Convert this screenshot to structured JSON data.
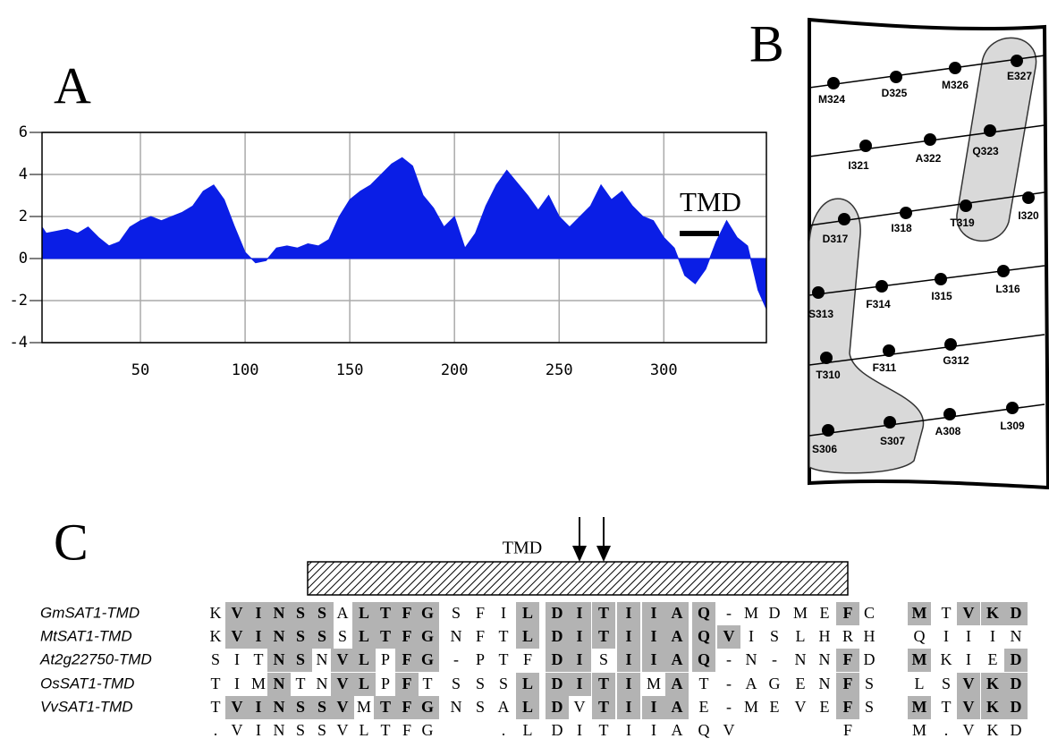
{
  "panels": {
    "a": "A",
    "b": "B",
    "c": "C"
  },
  "chart_data": {
    "type": "area",
    "color": "#0a1ee6",
    "x": [
      3,
      5,
      10,
      15,
      20,
      25,
      30,
      35,
      40,
      45,
      50,
      55,
      60,
      65,
      70,
      75,
      80,
      85,
      90,
      95,
      100,
      105,
      110,
      115,
      120,
      125,
      130,
      135,
      140,
      145,
      150,
      155,
      160,
      165,
      170,
      175,
      180,
      185,
      190,
      195,
      200,
      205,
      210,
      215,
      220,
      225,
      230,
      235,
      240,
      245,
      250,
      255,
      260,
      265,
      270,
      275,
      280,
      285,
      290,
      295,
      300,
      305,
      310,
      315,
      320,
      325,
      330,
      335,
      340,
      345,
      349
    ],
    "values": [
      1.5,
      1.2,
      1.3,
      1.4,
      1.2,
      1.5,
      1.0,
      0.6,
      0.8,
      1.5,
      1.8,
      2.0,
      1.8,
      2.0,
      2.2,
      2.5,
      3.2,
      3.5,
      2.8,
      1.5,
      0.3,
      -0.2,
      -0.1,
      0.5,
      0.6,
      0.5,
      0.7,
      0.6,
      0.9,
      2.0,
      2.8,
      3.2,
      3.5,
      4.0,
      4.5,
      4.8,
      4.4,
      3.0,
      2.4,
      1.5,
      2.0,
      0.5,
      1.2,
      2.5,
      3.5,
      4.2,
      3.6,
      3.0,
      2.3,
      3.0,
      2.0,
      1.5,
      2.0,
      2.5,
      3.5,
      2.8,
      3.2,
      2.5,
      2.0,
      1.8,
      1.0,
      0.5,
      -0.8,
      -1.2,
      -0.5,
      0.8,
      1.8,
      1.0,
      0.6,
      -1.5,
      -2.4
    ],
    "xlim": [
      3,
      349
    ],
    "ylim": [
      -4,
      6
    ],
    "xticks": [
      50,
      100,
      150,
      200,
      250,
      300
    ],
    "yticks": [
      6,
      4,
      2,
      0,
      -2,
      -4
    ],
    "grid": true,
    "annotation": "TMD"
  },
  "helical_net": {
    "nodes": [
      "M324",
      "D325",
      "M326",
      "E327",
      "I321",
      "A322",
      "Q323",
      "D317",
      "I318",
      "T319",
      "I320",
      "S313",
      "F314",
      "I315",
      "L316",
      "T310",
      "F311",
      "G312",
      "S306",
      "S307",
      "A308",
      "L309"
    ]
  },
  "alignment": {
    "domain_label": "TMD",
    "shade_color": "#b3b3b3",
    "names": [
      "GmSAT1-TMD",
      "MtSAT1-TMD",
      "At2g22750-TMD",
      "OsSAT1-TMD",
      "VvSAT1-TMD"
    ],
    "rows": [
      [
        "K",
        "V",
        "I",
        "N",
        "S",
        "S",
        "A",
        "L",
        "T",
        "F",
        "G",
        "S",
        "F",
        "I",
        "L",
        "D",
        "I",
        "T",
        "I",
        "I",
        "A",
        "Q",
        "-",
        "M",
        "D",
        "M",
        "E",
        "F",
        "C",
        "M",
        "T",
        "V",
        "K",
        "D"
      ],
      [
        "K",
        "V",
        "I",
        "N",
        "S",
        "S",
        "S",
        "L",
        "T",
        "F",
        "G",
        "N",
        "F",
        "T",
        "L",
        "D",
        "I",
        "T",
        "I",
        "I",
        "A",
        "Q",
        "V",
        "I",
        "S",
        "L",
        "H",
        "R",
        "H",
        "Q",
        "I",
        "I",
        "I",
        "N"
      ],
      [
        "S",
        "I",
        "T",
        "N",
        "S",
        "N",
        "V",
        "L",
        "P",
        "F",
        "G",
        "-",
        "P",
        "T",
        "F",
        "D",
        "I",
        "S",
        "I",
        "I",
        "A",
        "Q",
        "-",
        "N",
        "-",
        "N",
        "N",
        "F",
        "D",
        "M",
        "K",
        "I",
        "E",
        "D"
      ],
      [
        "T",
        "I",
        "M",
        "N",
        "T",
        "N",
        "V",
        "L",
        "P",
        "F",
        "T",
        "S",
        "S",
        "S",
        "L",
        "D",
        "I",
        "T",
        "I",
        "M",
        "A",
        "T",
        "-",
        "A",
        "G",
        "E",
        "N",
        "F",
        "S",
        "L",
        "S",
        "V",
        "K",
        "D"
      ],
      [
        "T",
        "V",
        "I",
        "N",
        "S",
        "S",
        "V",
        "M",
        "T",
        "F",
        "G",
        "N",
        "S",
        "A",
        "L",
        "D",
        "V",
        "T",
        "I",
        "I",
        "A",
        "E",
        "-",
        "M",
        "E",
        "V",
        "E",
        "F",
        "S",
        "M",
        "T",
        "V",
        "K",
        "D"
      ]
    ],
    "consensus": [
      ".",
      "V",
      "I",
      "N",
      "S",
      "S",
      "V",
      "L",
      "T",
      "F",
      "G",
      null,
      null,
      ".",
      "L",
      "D",
      "I",
      "T",
      "I",
      "I",
      "A",
      "Q",
      "V",
      null,
      null,
      null,
      null,
      "F",
      null,
      "M",
      ".",
      "V",
      "K",
      "D"
    ]
  }
}
